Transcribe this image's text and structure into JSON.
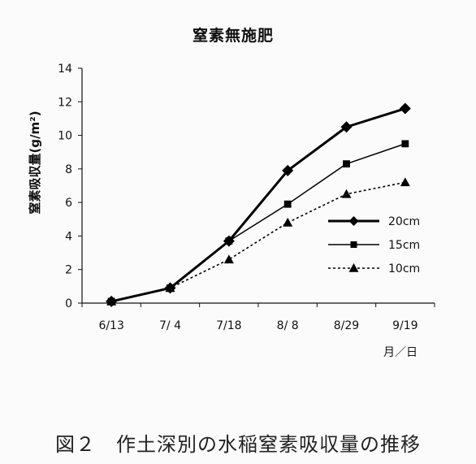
{
  "chart_data": {
    "type": "line",
    "title": "窒素無施肥",
    "ylabel": "窒素吸収量(g/m²)",
    "xlabel": "月／日",
    "categories": [
      "6/13",
      "7/ 4",
      "7/18",
      "8/ 8",
      "8/29",
      "9/19"
    ],
    "ylim": [
      0,
      14
    ],
    "yticks": [
      "0",
      "2",
      "4",
      "6",
      "8",
      "10",
      "12",
      "14"
    ],
    "grid": false,
    "legend_position": "right",
    "series": [
      {
        "name": "20cm",
        "values": [
          0.1,
          0.9,
          3.7,
          7.9,
          10.5,
          11.6
        ],
        "marker": "diamond",
        "line": "solid-bold"
      },
      {
        "name": "15cm",
        "values": [
          0.1,
          0.9,
          3.7,
          5.9,
          8.3,
          9.5
        ],
        "marker": "square",
        "line": "solid"
      },
      {
        "name": "10cm",
        "values": [
          0.1,
          0.9,
          2.6,
          4.8,
          6.5,
          7.2
        ],
        "marker": "triangle",
        "line": "dashed"
      }
    ]
  },
  "caption": "図２　作土深別の水稲窒素吸収量の推移"
}
